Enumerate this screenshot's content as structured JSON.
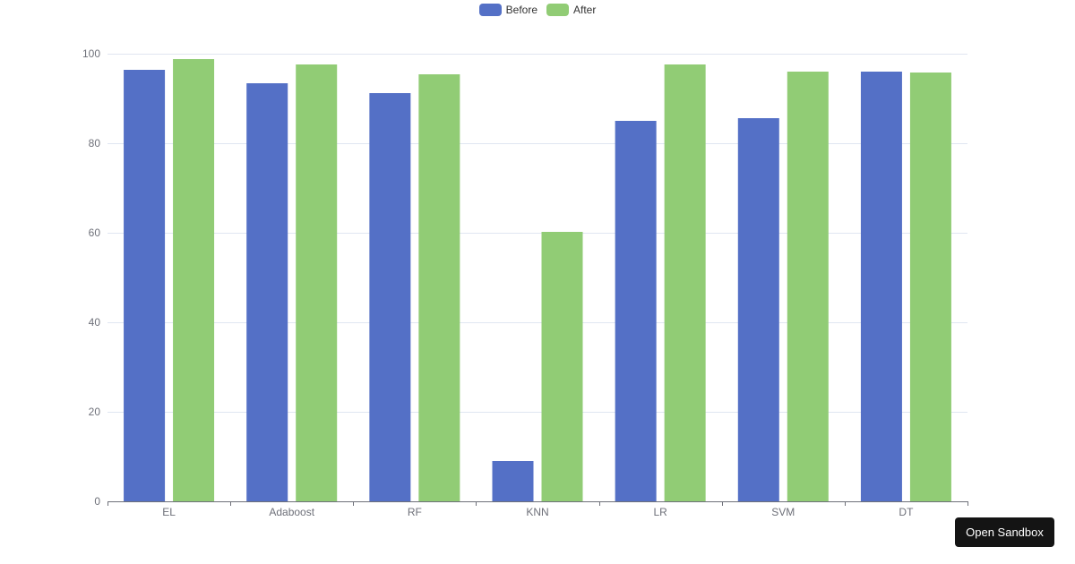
{
  "chart_data": {
    "type": "bar",
    "title": "",
    "xlabel": "",
    "ylabel": "",
    "categories": [
      "EL",
      "Adaboost",
      "RF",
      "KNN",
      "LR",
      "SVM",
      "DT"
    ],
    "series": [
      {
        "name": "Before",
        "color": "#5470c6",
        "values": [
          96.4,
          93.4,
          91.2,
          9.0,
          85.0,
          85.6,
          96.0
        ]
      },
      {
        "name": "After",
        "color": "#91cc75",
        "values": [
          98.8,
          97.6,
          95.4,
          60.2,
          97.6,
          96.0,
          95.8
        ]
      }
    ],
    "ylim": [
      0,
      100
    ],
    "yticks": [
      0,
      20,
      40,
      60,
      80,
      100
    ],
    "grid": true,
    "legend_position": "top-center"
  },
  "legend": {
    "items": [
      {
        "label": "Before",
        "color": "#5470c6"
      },
      {
        "label": "After",
        "color": "#91cc75"
      }
    ]
  },
  "button": {
    "open_sandbox_label": "Open Sandbox"
  }
}
